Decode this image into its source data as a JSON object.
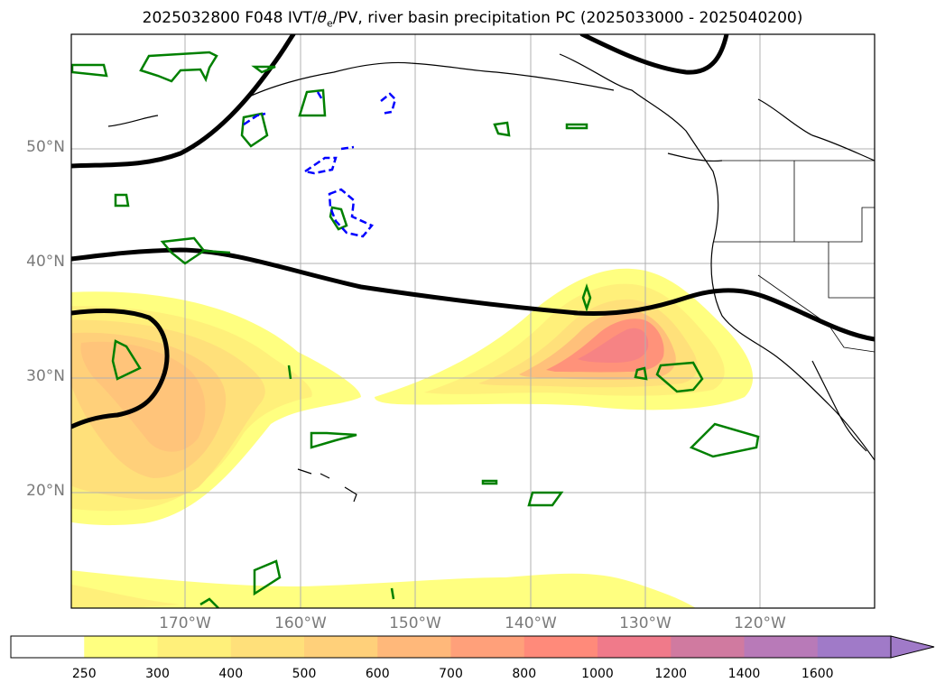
{
  "title": "2025032800 F048 IVT/θe/PV, river basin precipitation PC (2025033000 - 2025040200)",
  "title_parts": {
    "prefix": "2025032800 F048 IVT/",
    "theta": "θ",
    "sub": "e",
    "suffix": "/PV, river basin precipitation PC (2025033000 - 2025040200)"
  },
  "lat_labels": [
    "50°N",
    "40°N",
    "30°N",
    "20°N"
  ],
  "lon_labels": [
    "170°W",
    "160°W",
    "150°W",
    "140°W",
    "130°W",
    "120°W"
  ],
  "colorbar": {
    "levels": [
      "250",
      "300",
      "400",
      "500",
      "600",
      "700",
      "800",
      "1000",
      "1200",
      "1400",
      "1600"
    ],
    "colors": [
      "#ffffff",
      "#ffff80",
      "#fff07a",
      "#ffe07a",
      "#ffd07a",
      "#ffb87a",
      "#ffa07a",
      "#ff8a7a",
      "#f07a8a",
      "#d07aa0",
      "#b87ab8",
      "#a07ac8"
    ]
  },
  "chart_data": {
    "type": "heatmap",
    "variable": "IVT",
    "colorbar_levels": [
      250,
      300,
      400,
      500,
      600,
      700,
      800,
      1000,
      1200,
      1400,
      1600
    ],
    "lat_range": [
      10,
      60
    ],
    "lon_range": [
      -180,
      -110
    ],
    "plumes": [
      {
        "center_lon": -169,
        "center_lat": 28,
        "max_level": 600
      },
      {
        "center_lon": -132,
        "center_lat": 32,
        "max_level": 1000
      }
    ]
  },
  "colors": {
    "contour_black": "#000000",
    "contour_green": "#008000",
    "contour_blue": "#0000ff",
    "grid": "#b0b0b0"
  }
}
